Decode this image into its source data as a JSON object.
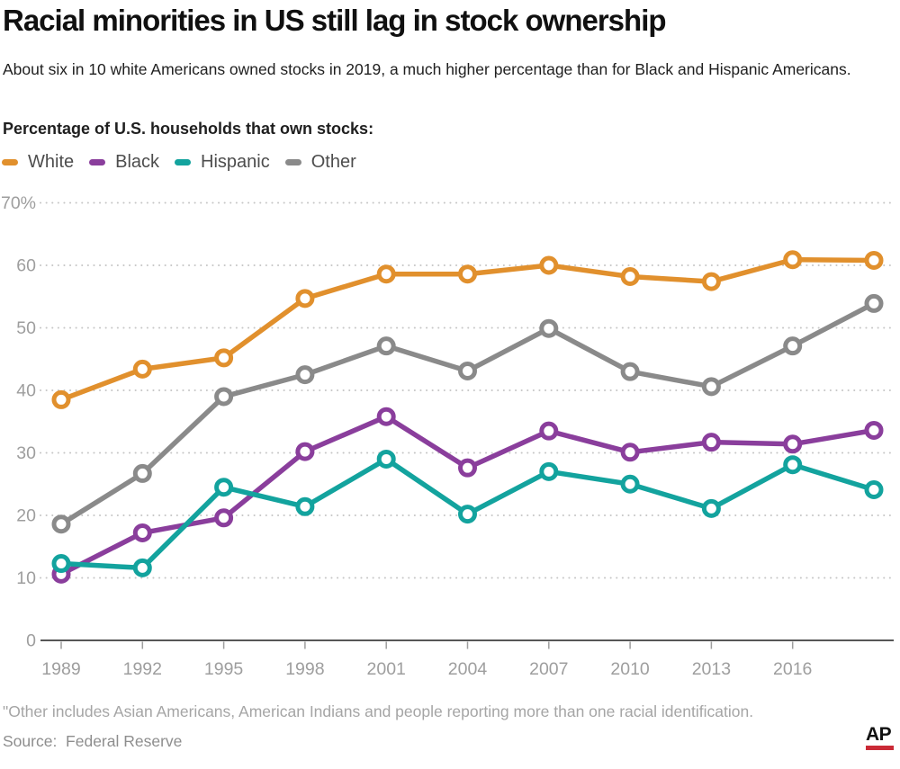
{
  "header": {
    "title": "Racial minorities in US still lag in stock ownership",
    "subtitle": "About six in 10 white Americans owned stocks in 2019, a much higher percentage than for Black and Hispanic Americans.",
    "chart_label": "Percentage of U.S. households that own stocks:"
  },
  "chart_data": {
    "type": "line",
    "title": "Percentage of U.S. households that own stocks",
    "x": [
      1989,
      1992,
      1995,
      1998,
      2001,
      2004,
      2007,
      2010,
      2013,
      2016,
      2019
    ],
    "x_tick_labels": [
      "1989",
      "1992",
      "1995",
      "1998",
      "2001",
      "2004",
      "2007",
      "2010",
      "2013",
      "2016"
    ],
    "ylim": [
      0,
      70
    ],
    "y_ticks": [
      {
        "value": 0,
        "label": "0"
      },
      {
        "value": 10,
        "label": "10"
      },
      {
        "value": 20,
        "label": "20"
      },
      {
        "value": 30,
        "label": "30"
      },
      {
        "value": 40,
        "label": "40"
      },
      {
        "value": 50,
        "label": "50"
      },
      {
        "value": 60,
        "label": "60"
      },
      {
        "value": 70,
        "label": "70%"
      }
    ],
    "grid": "dotted-horizontal",
    "legend_position": "top-left",
    "marker_style": "open-circle",
    "series": [
      {
        "name": "White",
        "color": "#E1902D",
        "values": [
          38.5,
          43.4,
          45.2,
          54.7,
          58.6,
          58.6,
          60.0,
          58.2,
          57.4,
          60.9,
          60.8
        ]
      },
      {
        "name": "Black",
        "color": "#8A3E9C",
        "values": [
          10.6,
          17.2,
          19.6,
          30.2,
          35.8,
          27.6,
          33.5,
          30.1,
          31.7,
          31.4,
          33.6
        ]
      },
      {
        "name": "Hispanic",
        "color": "#13A39E",
        "values": [
          12.3,
          11.6,
          24.5,
          21.4,
          29.0,
          20.2,
          27.0,
          25.0,
          21.1,
          28.1,
          24.1
        ]
      },
      {
        "name": "Other",
        "color": "#8A8A8A",
        "values": [
          18.6,
          26.7,
          39.0,
          42.5,
          47.1,
          43.1,
          49.9,
          43.0,
          40.6,
          47.1,
          53.9
        ]
      }
    ],
    "colors": {
      "axis_line": "#3f3f3f",
      "axis_text": "#9e9e9e",
      "gridline": "#c6c6c6"
    }
  },
  "footer": {
    "footnote": "\"Other includes Asian Americans, American Indians and people reporting more than one racial identification.",
    "source": "Source:  Federal Reserve",
    "logo": "AP",
    "logo_underline_color": "#CA2A36"
  }
}
